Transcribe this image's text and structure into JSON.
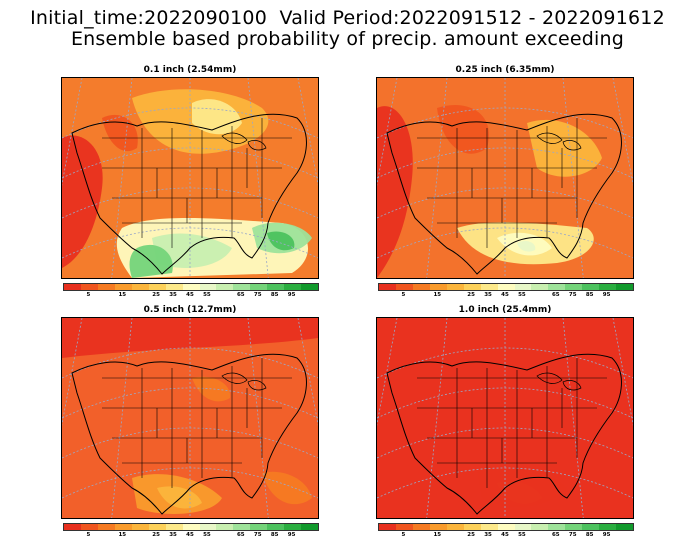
{
  "header": {
    "line1": "Initial_time:2022090100  Valid Period:2022091512 - 2022091612",
    "line2": "Ensemble based probability of precip. amount exceeding"
  },
  "panels": [
    {
      "title": "0.1 inch (2.54mm)",
      "base_color": "#f47c2c"
    },
    {
      "title": "0.25 inch (6.35mm)",
      "base_color": "#f3722c"
    },
    {
      "title": "0.5 inch (12.7mm)",
      "base_color": "#f2602a"
    },
    {
      "title": "1.0 inch (25.4mm)",
      "base_color": "#ef4f2a"
    }
  ],
  "colorbar": {
    "colors": [
      "#e8301f",
      "#f0551f",
      "#f57a22",
      "#f99b2c",
      "#fbb53c",
      "#fdd15a",
      "#fde98a",
      "#fefcc0",
      "#e8f7c8",
      "#c8efb0",
      "#9ee39a",
      "#74d47a",
      "#4cc25e",
      "#2aae40",
      "#119a2c"
    ],
    "labels": [
      "5",
      "15",
      "25",
      "35",
      "45",
      "55",
      "65",
      "75",
      "85",
      "95"
    ]
  }
}
